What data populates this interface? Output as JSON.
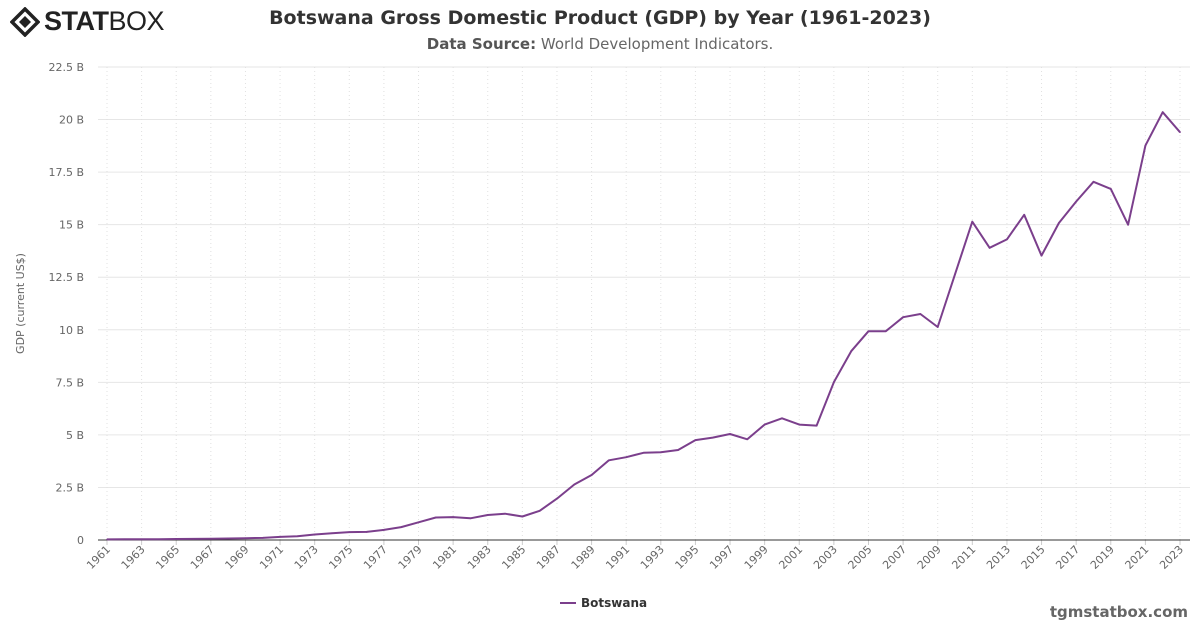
{
  "logo": {
    "text_bold": "STAT",
    "text_light": "BOX"
  },
  "title": "Botswana Gross Domestic Product (GDP) by Year (1961-2023)",
  "subtitle": {
    "label": "Data Source:",
    "value": "World Development Indicators."
  },
  "watermark": "tgmstatbox.com",
  "chart_data": {
    "type": "line",
    "title": "Botswana Gross Domestic Product (GDP) by Year (1961-2023)",
    "ylabel": "GDP (current US$)",
    "xlabel": "",
    "ylim": [
      0,
      22.5
    ],
    "y_unit": "B",
    "y_ticks": [
      "0",
      "2.5 B",
      "5 B",
      "7.5 B",
      "10 B",
      "12.5 B",
      "15 B",
      "17.5 B",
      "20 B",
      "22.5 B"
    ],
    "x_ticks": [
      "1961",
      "1963",
      "1965",
      "1967",
      "1969",
      "1971",
      "1973",
      "1975",
      "1977",
      "1979",
      "1981",
      "1983",
      "1985",
      "1987",
      "1989",
      "1991",
      "1993",
      "1995",
      "1997",
      "1999",
      "2001",
      "2003",
      "2005",
      "2007",
      "2009",
      "2011",
      "2013",
      "2015",
      "2017",
      "2019",
      "2021",
      "2023"
    ],
    "grid": true,
    "legend_position": "bottom",
    "series": [
      {
        "name": "Botswana",
        "color": "#7b3f8c",
        "x": [
          1961,
          1962,
          1963,
          1964,
          1965,
          1966,
          1967,
          1968,
          1969,
          1970,
          1971,
          1972,
          1973,
          1974,
          1975,
          1976,
          1977,
          1978,
          1979,
          1980,
          1981,
          1982,
          1983,
          1984,
          1985,
          1986,
          1987,
          1988,
          1989,
          1990,
          1991,
          1992,
          1993,
          1994,
          1995,
          1996,
          1997,
          1998,
          1999,
          2000,
          2001,
          2002,
          2003,
          2004,
          2005,
          2006,
          2007,
          2008,
          2009,
          2010,
          2011,
          2012,
          2013,
          2014,
          2015,
          2016,
          2017,
          2018,
          2019,
          2020,
          2021,
          2022,
          2023
        ],
        "values": [
          0.03,
          0.032,
          0.034,
          0.036,
          0.048,
          0.052,
          0.062,
          0.072,
          0.087,
          0.101,
          0.149,
          0.181,
          0.264,
          0.324,
          0.375,
          0.383,
          0.479,
          0.614,
          0.84,
          1.07,
          1.09,
          1.03,
          1.19,
          1.25,
          1.12,
          1.39,
          1.97,
          2.64,
          3.09,
          3.79,
          3.94,
          4.15,
          4.17,
          4.28,
          4.75,
          4.87,
          5.04,
          4.79,
          5.49,
          5.79,
          5.49,
          5.44,
          7.51,
          8.98,
          9.93,
          9.93,
          10.6,
          10.75,
          10.13,
          12.64,
          15.14,
          13.9,
          14.3,
          15.47,
          13.53,
          15.08,
          16.1,
          17.04,
          16.7,
          15.0,
          18.76,
          20.35,
          19.4
        ]
      }
    ]
  }
}
